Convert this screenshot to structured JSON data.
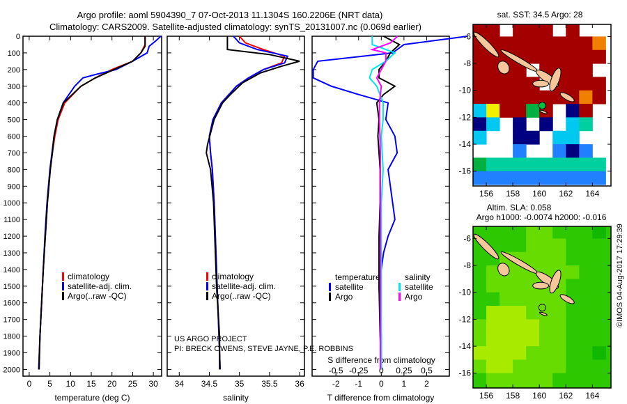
{
  "title_line1": "Argo profile: aoml 5904390_7 07-Oct-2013 11.1304S 160.2206E (NRT data)",
  "title_line2": "Climatology: CARS2009. Satellite-adjusted climatology: synTS_20131007.nc (0.069d earlier)",
  "credit_line1": "US ARGO PROJECT",
  "credit_line2": "PI: BRECK OWENS, STEVE JAYNE, P.E. ROBBINS",
  "timestamp": "©IMOS 04-Aug-2017 17:29:39",
  "colors": {
    "climatology": "#ff0000",
    "satellite": "#0000ff",
    "argo": "#000000",
    "sal_satellite": "#00e5ee",
    "sal_argo": "#ff00ff",
    "land": "#f5c79b"
  },
  "chart_data": [
    {
      "type": "line",
      "xlabel": "temperature (deg C)",
      "ylabel": "depth",
      "xlim": [
        -1.5,
        32
      ],
      "ylim": [
        2040,
        0
      ],
      "xticks": [
        0,
        5,
        10,
        15,
        20,
        25,
        30
      ],
      "yticks": [
        0,
        100,
        200,
        300,
        400,
        500,
        600,
        700,
        800,
        900,
        1000,
        1100,
        1200,
        1300,
        1400,
        1500,
        1600,
        1700,
        1800,
        1900,
        2000
      ],
      "legend": [
        "climatology",
        "satellite-adj. clim.",
        "Argo(..raw -QC)"
      ],
      "legend_placement": "lower-center",
      "series": [
        {
          "name": "climatology",
          "color": "#ff0000",
          "depth": [
            0,
            50,
            100,
            150,
            200,
            250,
            300,
            400,
            500,
            600,
            700,
            800,
            1000,
            1200,
            1400,
            1600,
            1800,
            2000
          ],
          "values": [
            28,
            28,
            27,
            25,
            20,
            16,
            12.5,
            8.6,
            7,
            6.2,
            5.6,
            5.1,
            4.4,
            3.9,
            3.4,
            3,
            2.6,
            2.3
          ]
        },
        {
          "name": "satellite-adj. clim.",
          "color": "#0000ff",
          "depth": [
            0,
            30,
            60,
            100,
            150,
            200,
            230,
            250,
            300,
            400,
            500,
            600,
            700,
            800,
            1000,
            1200,
            1400,
            1600,
            1800,
            2000
          ],
          "values": [
            31.8,
            30.5,
            29,
            28.5,
            25,
            21,
            16,
            13,
            11,
            8.2,
            6.8,
            6,
            5.5,
            5,
            4.3,
            3.8,
            3.4,
            3,
            2.6,
            2.3
          ]
        },
        {
          "name": "Argo(..raw -QC)",
          "color": "#000000",
          "depth": [
            0,
            60,
            100,
            150,
            200,
            250,
            300,
            400,
            500,
            600,
            700,
            800,
            1000,
            1200,
            1400,
            1600,
            1800,
            2000
          ],
          "values": [
            28,
            28,
            27,
            25,
            20.5,
            16,
            12.5,
            8.3,
            6.8,
            6,
            5.6,
            5.1,
            4.4,
            3.9,
            3.4,
            3,
            2.6,
            2.4
          ]
        }
      ]
    },
    {
      "type": "line",
      "xlabel": "salinity",
      "ylabel": "depth",
      "xlim": [
        33.8,
        36.08
      ],
      "ylim": [
        2040,
        0
      ],
      "xticks": [
        34,
        34.5,
        35,
        35.5,
        36
      ],
      "xticklabels": [
        "34",
        "34.5",
        "35",
        "35.5",
        "36"
      ],
      "legend": [
        "climatology",
        "satellite-adj. clim.",
        "Argo(..raw -QC)"
      ],
      "legend_placement": "lower-center",
      "series": [
        {
          "name": "climatology",
          "color": "#ff0000",
          "depth": [
            0,
            40,
            80,
            120,
            160,
            200,
            250,
            300,
            400,
            500,
            600,
            700,
            800,
            1000,
            1500,
            2000
          ],
          "values": [
            35.0,
            35.1,
            35.4,
            35.75,
            35.7,
            35.4,
            35.15,
            34.95,
            34.7,
            34.56,
            34.5,
            34.52,
            34.55,
            34.58,
            34.63,
            34.68
          ]
        },
        {
          "name": "satellite-adj. clim.",
          "color": "#0000ff",
          "depth": [
            0,
            40,
            80,
            120,
            160,
            200,
            250,
            300,
            400,
            500,
            600,
            700,
            800,
            1000,
            1500,
            2000
          ],
          "values": [
            34.9,
            35.0,
            35.3,
            35.8,
            35.75,
            35.4,
            35.15,
            34.95,
            34.7,
            34.56,
            34.5,
            34.52,
            34.55,
            34.58,
            34.63,
            34.68
          ]
        },
        {
          "name": "Argo(..raw -QC)",
          "color": "#000000",
          "depth": [
            0,
            80,
            110,
            150,
            180,
            220,
            280,
            350,
            400,
            500,
            650,
            700,
            800,
            1000,
            1500,
            1800,
            2000
          ],
          "values": [
            34.8,
            34.8,
            35.5,
            36.0,
            35.7,
            35.35,
            35.05,
            34.85,
            34.72,
            34.58,
            34.47,
            34.45,
            34.52,
            34.57,
            34.62,
            34.67,
            34.67
          ]
        }
      ]
    },
    {
      "type": "line",
      "xlabel": "T difference from climatology",
      "x2label": "S difference from climatology",
      "xlim": [
        -3.05,
        3.0
      ],
      "x2lim": [
        -0.7625,
        0.75
      ],
      "ylim": [
        2040,
        0
      ],
      "xticks": [
        -2,
        -1,
        0,
        1,
        2
      ],
      "x2ticks": [
        -0.5,
        -0.25,
        0,
        0.25,
        0.5
      ],
      "x2ticklabels": [
        "-0.5",
        "-0.25",
        "0",
        "0.25",
        "0.5"
      ],
      "legend_temperature": {
        "title": "temperature",
        "items": [
          "satellite",
          "Argo"
        ]
      },
      "legend_salinity": {
        "title": "salinity",
        "items": [
          "satellite",
          "Argo"
        ]
      },
      "legend_placement": "center",
      "series": [
        {
          "name": "temperature satellite",
          "axis": "T",
          "color": "#0000ff",
          "depth": [
            0,
            50,
            100,
            150,
            200,
            250,
            300,
            350,
            400,
            500,
            600,
            700,
            800,
            900,
            1000,
            1100,
            1200,
            1300,
            1500,
            1800,
            2000
          ],
          "values": [
            3.8,
            1.0,
            0.5,
            -2.8,
            -3.0,
            -3.0,
            -2.2,
            -1.0,
            0.3,
            0.2,
            0.6,
            0.7,
            0.3,
            0.4,
            0.5,
            0.6,
            0.3,
            0.1,
            -0.1,
            0,
            0
          ]
        },
        {
          "name": "temperature Argo",
          "axis": "T",
          "color": "#000000",
          "depth": [
            0,
            50,
            100,
            150,
            200,
            250,
            300,
            350,
            400,
            500,
            600,
            700,
            800,
            1000,
            1200,
            1500,
            1800,
            2000
          ],
          "values": [
            0.1,
            0.8,
            0.4,
            0.2,
            -0.1,
            -0.1,
            0.6,
            0.1,
            -0.2,
            -0.1,
            -0.15,
            -0.1,
            -0.05,
            -0.05,
            -0.1,
            -0.1,
            -0.05,
            0
          ]
        },
        {
          "name": "salinity satellite",
          "axis": "S",
          "color": "#00e5ee",
          "depth": [
            0,
            50,
            100,
            150,
            200,
            250,
            300,
            400,
            500,
            600,
            700,
            800,
            1000,
            1200,
            1500,
            1800,
            2000
          ],
          "values": [
            -0.1,
            -0.1,
            0.15,
            0.05,
            -0.1,
            -0.13,
            -0.05,
            0.02,
            0.02,
            0.0,
            0.01,
            0.02,
            0.0,
            0.0,
            0.0,
            0.0,
            0.0
          ]
        },
        {
          "name": "salinity Argo",
          "axis": "S",
          "color": "#ff00ff",
          "depth": [
            0,
            40,
            80,
            100,
            150,
            200,
            250,
            300,
            400,
            500,
            700,
            1000,
            1500,
            2000
          ],
          "values": [
            0.18,
            0.1,
            -0.1,
            0.05,
            0.05,
            0.0,
            -0.05,
            0.0,
            -0.02,
            -0.02,
            -0.01,
            -0.01,
            -0.01,
            -0.01
          ]
        }
      ]
    },
    {
      "type": "heatmap",
      "title": "sat. SST: 34.5 Argo: 28",
      "xlim": [
        155,
        165.4
      ],
      "ylim": [
        -17.1,
        -5.1
      ],
      "xticks": [
        156,
        158,
        160,
        162,
        164
      ],
      "yticks": [
        -6,
        -8,
        -10,
        -12,
        -14,
        -16
      ],
      "grid_origin": {
        "lon": 155,
        "lat": -5
      },
      "cell_deg": 1,
      "palette": {
        "r": "#a50000",
        "o": "#f08000",
        "y": "#f0f000",
        "g": "#00b040",
        "c": "#00c8f0",
        "b": "#2080ff",
        "n": "#000080",
        "t": "#00d0a0"
      },
      "rows": [
        "rr.rrr.r..",
        "rrrrrrrrro",
        "rrrrrrrrrr",
        "rrrr.rrrr.",
        "rrrrr.rrrr",
        "rrrrrrrror",
        "cyrrgr.nr.",
        "nc.n.n.ct.",
        "c..nn.cc..",
        "...b..bnb.",
        "gttttttttt",
        "bbbbbbbbbb"
      ],
      "argo_position": {
        "lon": 160.22,
        "lat": -11.13
      }
    },
    {
      "type": "heatmap",
      "title_line1": "Altim. SLA: 0.058",
      "title_line2": "Argo h1000: -0.0074 h2000: -0.016",
      "xlim": [
        155,
        165.4
      ],
      "ylim": [
        -17.1,
        -5.1
      ],
      "xticks": [
        156,
        158,
        160,
        162,
        164
      ],
      "yticks": [
        -6,
        -8,
        -10,
        -12,
        -14,
        -16
      ],
      "grid_origin": {
        "lon": 155,
        "lat": -5
      },
      "cell_deg": 1,
      "palette": {
        "g": "#2ec800",
        "l": "#66dc00",
        "y": "#a8ea00",
        "d": "#10b800"
      },
      "rows": [
        "ggggllgggd",
        "gggglllggg",
        "gglllllggg",
        "glllllllgg",
        "gllllllggg",
        "gglllllggg",
        "gyyylllggg",
        "lyyyyllggg",
        "lyyyyllggg",
        "yyyylllggd",
        "lyyllllggg",
        "glllllgggg"
      ],
      "argo_position": {
        "lon": 160.22,
        "lat": -11.13
      }
    }
  ]
}
